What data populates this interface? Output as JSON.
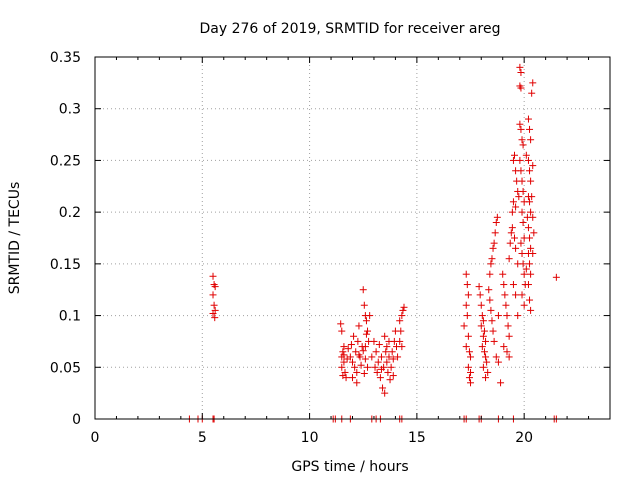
{
  "chart_data": {
    "type": "scatter",
    "title": "Day 276 of 2019, SRMTID for receiver areg",
    "xlabel": "GPS time / hours",
    "ylabel": "SRMTID / TECUs",
    "xlim": [
      0,
      24
    ],
    "ylim": [
      0,
      0.35
    ],
    "x_ticks": [
      0,
      5,
      10,
      15,
      20
    ],
    "x_tick_labels": [
      "0",
      "5",
      "10",
      "15",
      "20"
    ],
    "y_ticks": [
      0,
      0.05,
      0.1,
      0.15,
      0.2,
      0.25,
      0.3,
      0.35
    ],
    "y_tick_labels": [
      "0",
      "0.05",
      "0.1",
      "0.15",
      "0.2",
      "0.25",
      "0.3",
      "0.35"
    ],
    "grid": true,
    "marker": "+",
    "color": "#e00000",
    "series": [
      {
        "name": "SRMTID",
        "points": [
          [
            4.4,
            0
          ],
          [
            4.8,
            0
          ],
          [
            5.0,
            0
          ],
          [
            5.5,
            0
          ],
          [
            5.55,
            0
          ],
          [
            11.1,
            0
          ],
          [
            11.2,
            0
          ],
          [
            11.5,
            0
          ],
          [
            11.9,
            0
          ],
          [
            12.9,
            0
          ],
          [
            13.1,
            0
          ],
          [
            13.3,
            0
          ],
          [
            14.2,
            0
          ],
          [
            14.3,
            0
          ],
          [
            17.2,
            0
          ],
          [
            17.3,
            0
          ],
          [
            17.9,
            0
          ],
          [
            18.0,
            0
          ],
          [
            18.8,
            0
          ],
          [
            19.5,
            0
          ],
          [
            21.4,
            0
          ],
          [
            21.5,
            0
          ],
          [
            5.5,
            0.138
          ],
          [
            5.55,
            0.13
          ],
          [
            5.6,
            0.128
          ],
          [
            5.5,
            0.12
          ],
          [
            5.55,
            0.11
          ],
          [
            5.6,
            0.105
          ],
          [
            5.5,
            0.102
          ],
          [
            5.58,
            0.098
          ],
          [
            11.45,
            0.092
          ],
          [
            11.5,
            0.085
          ],
          [
            11.6,
            0.07
          ],
          [
            11.55,
            0.065
          ],
          [
            11.5,
            0.06
          ],
          [
            11.6,
            0.055
          ],
          [
            11.5,
            0.05
          ],
          [
            11.65,
            0.045
          ],
          [
            11.55,
            0.042
          ],
          [
            11.7,
            0.04
          ],
          [
            11.6,
            0.062
          ],
          [
            11.75,
            0.058
          ],
          [
            11.8,
            0.068
          ],
          [
            11.9,
            0.06
          ],
          [
            11.95,
            0.072
          ],
          [
            12.0,
            0.055
          ],
          [
            12.05,
            0.08
          ],
          [
            12.1,
            0.05
          ],
          [
            12.15,
            0.065
          ],
          [
            12.2,
            0.045
          ],
          [
            12.25,
            0.075
          ],
          [
            12.3,
            0.09
          ],
          [
            12.35,
            0.06
          ],
          [
            12.4,
            0.052
          ],
          [
            12.45,
            0.07
          ],
          [
            12.0,
            0.04
          ],
          [
            12.2,
            0.035
          ],
          [
            12.3,
            0.062
          ],
          [
            12.5,
            0.125
          ],
          [
            12.55,
            0.11
          ],
          [
            12.6,
            0.1
          ],
          [
            12.65,
            0.095
          ],
          [
            12.7,
            0.085
          ],
          [
            12.75,
            0.075
          ],
          [
            12.5,
            0.066
          ],
          [
            12.6,
            0.058
          ],
          [
            12.7,
            0.05
          ],
          [
            12.55,
            0.044
          ],
          [
            12.65,
            0.082
          ],
          [
            12.8,
            0.1
          ],
          [
            12.6,
            0.07
          ],
          [
            12.9,
            0.06
          ],
          [
            13.0,
            0.075
          ],
          [
            13.05,
            0.05
          ],
          [
            13.1,
            0.065
          ],
          [
            13.15,
            0.045
          ],
          [
            13.2,
            0.055
          ],
          [
            13.25,
            0.072
          ],
          [
            13.3,
            0.04
          ],
          [
            13.35,
            0.06
          ],
          [
            13.4,
            0.03
          ],
          [
            13.45,
            0.05
          ],
          [
            13.5,
            0.025
          ],
          [
            13.55,
            0.065
          ],
          [
            13.6,
            0.07
          ],
          [
            13.35,
            0.048
          ],
          [
            13.5,
            0.08
          ],
          [
            13.6,
            0.055
          ],
          [
            13.65,
            0.045
          ],
          [
            13.7,
            0.06
          ],
          [
            13.75,
            0.038
          ],
          [
            13.8,
            0.05
          ],
          [
            13.85,
            0.065
          ],
          [
            13.9,
            0.042
          ],
          [
            13.95,
            0.075
          ],
          [
            14.0,
            0.085
          ],
          [
            14.05,
            0.07
          ],
          [
            14.1,
            0.06
          ],
          [
            13.7,
            0.075
          ],
          [
            13.9,
            0.058
          ],
          [
            14.2,
            0.095
          ],
          [
            14.25,
            0.085
          ],
          [
            14.3,
            0.1
          ],
          [
            14.35,
            0.105
          ],
          [
            14.4,
            0.108
          ],
          [
            14.2,
            0.075
          ],
          [
            14.3,
            0.07
          ],
          [
            17.3,
            0.14
          ],
          [
            17.35,
            0.13
          ],
          [
            17.4,
            0.12
          ],
          [
            17.3,
            0.11
          ],
          [
            17.35,
            0.1
          ],
          [
            17.2,
            0.09
          ],
          [
            17.4,
            0.08
          ],
          [
            17.3,
            0.07
          ],
          [
            17.45,
            0.065
          ],
          [
            17.5,
            0.06
          ],
          [
            17.4,
            0.05
          ],
          [
            17.5,
            0.045
          ],
          [
            17.45,
            0.04
          ],
          [
            17.5,
            0.035
          ],
          [
            17.9,
            0.128
          ],
          [
            17.95,
            0.12
          ],
          [
            18.0,
            0.11
          ],
          [
            18.05,
            0.1
          ],
          [
            18.1,
            0.095
          ],
          [
            18.0,
            0.09
          ],
          [
            18.15,
            0.085
          ],
          [
            18.1,
            0.08
          ],
          [
            18.2,
            0.075
          ],
          [
            18.05,
            0.07
          ],
          [
            18.15,
            0.065
          ],
          [
            18.2,
            0.06
          ],
          [
            18.25,
            0.055
          ],
          [
            18.3,
            0.045
          ],
          [
            18.2,
            0.04
          ],
          [
            18.1,
            0.05
          ],
          [
            18.35,
            0.125
          ],
          [
            18.4,
            0.115
          ],
          [
            18.45,
            0.105
          ],
          [
            18.5,
            0.095
          ],
          [
            18.55,
            0.085
          ],
          [
            18.6,
            0.075
          ],
          [
            18.4,
            0.14
          ],
          [
            18.5,
            0.155
          ],
          [
            18.6,
            0.17
          ],
          [
            18.65,
            0.18
          ],
          [
            18.7,
            0.19
          ],
          [
            18.75,
            0.195
          ],
          [
            18.55,
            0.165
          ],
          [
            18.45,
            0.15
          ],
          [
            18.8,
            0.1
          ],
          [
            18.7,
            0.06
          ],
          [
            18.8,
            0.055
          ],
          [
            18.9,
            0.035
          ],
          [
            19.0,
            0.14
          ],
          [
            19.05,
            0.13
          ],
          [
            19.1,
            0.12
          ],
          [
            19.15,
            0.11
          ],
          [
            19.2,
            0.1
          ],
          [
            19.25,
            0.09
          ],
          [
            19.3,
            0.08
          ],
          [
            19.05,
            0.07
          ],
          [
            19.2,
            0.065
          ],
          [
            19.3,
            0.06
          ],
          [
            19.35,
            0.17
          ],
          [
            19.4,
            0.18
          ],
          [
            19.45,
            0.2
          ],
          [
            19.3,
            0.155
          ],
          [
            19.5,
            0.25
          ],
          [
            19.55,
            0.255
          ],
          [
            19.6,
            0.24
          ],
          [
            19.65,
            0.23
          ],
          [
            19.7,
            0.22
          ],
          [
            19.75,
            0.215
          ],
          [
            19.5,
            0.21
          ],
          [
            19.6,
            0.205
          ],
          [
            19.45,
            0.185
          ],
          [
            19.55,
            0.175
          ],
          [
            19.6,
            0.165
          ],
          [
            19.7,
            0.15
          ],
          [
            19.5,
            0.13
          ],
          [
            19.6,
            0.12
          ],
          [
            19.7,
            0.1
          ],
          [
            19.8,
            0.34
          ],
          [
            19.85,
            0.335
          ],
          [
            19.8,
            0.322
          ],
          [
            19.85,
            0.32
          ],
          [
            19.8,
            0.285
          ],
          [
            19.85,
            0.28
          ],
          [
            19.9,
            0.27
          ],
          [
            19.95,
            0.265
          ],
          [
            19.8,
            0.25
          ],
          [
            19.85,
            0.24
          ],
          [
            19.9,
            0.23
          ],
          [
            19.95,
            0.22
          ],
          [
            20.0,
            0.21
          ],
          [
            19.9,
            0.2
          ],
          [
            19.95,
            0.19
          ],
          [
            20.0,
            0.175
          ],
          [
            19.85,
            0.17
          ],
          [
            19.9,
            0.16
          ],
          [
            19.95,
            0.15
          ],
          [
            20.0,
            0.14
          ],
          [
            20.05,
            0.13
          ],
          [
            19.9,
            0.12
          ],
          [
            20.0,
            0.11
          ],
          [
            20.2,
            0.29
          ],
          [
            20.25,
            0.28
          ],
          [
            20.3,
            0.27
          ],
          [
            20.2,
            0.25
          ],
          [
            20.25,
            0.24
          ],
          [
            20.3,
            0.23
          ],
          [
            20.2,
            0.215
          ],
          [
            20.25,
            0.21
          ],
          [
            20.3,
            0.2
          ],
          [
            20.2,
            0.185
          ],
          [
            20.25,
            0.175
          ],
          [
            20.3,
            0.165
          ],
          [
            20.2,
            0.16
          ],
          [
            20.25,
            0.15
          ],
          [
            20.3,
            0.14
          ],
          [
            20.2,
            0.13
          ],
          [
            20.25,
            0.115
          ],
          [
            20.3,
            0.105
          ],
          [
            20.1,
            0.145
          ],
          [
            20.15,
            0.195
          ],
          [
            20.1,
            0.255
          ],
          [
            20.4,
            0.325
          ],
          [
            20.35,
            0.315
          ],
          [
            20.4,
            0.245
          ],
          [
            20.35,
            0.215
          ],
          [
            20.4,
            0.195
          ],
          [
            20.45,
            0.18
          ],
          [
            20.4,
            0.16
          ],
          [
            21.5,
            0.137
          ]
        ]
      }
    ]
  }
}
